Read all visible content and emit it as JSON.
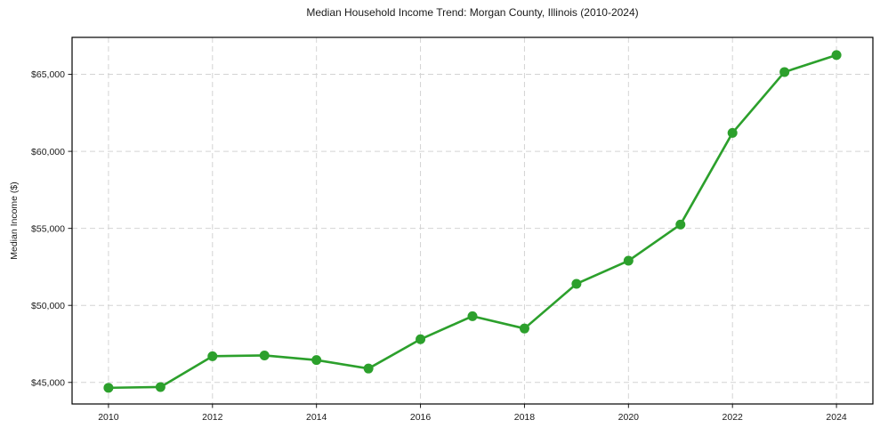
{
  "chart_data": {
    "type": "line",
    "title": "Median Household Income Trend: Morgan County, Illinois (2010-2024)",
    "xlabel": "",
    "ylabel": "Median Income ($)",
    "x": [
      2010,
      2011,
      2012,
      2013,
      2014,
      2015,
      2016,
      2017,
      2018,
      2019,
      2020,
      2021,
      2022,
      2023,
      2024
    ],
    "series": [
      {
        "name": "Median Household Income",
        "values": [
          44650,
          44700,
          46700,
          46750,
          46450,
          45900,
          47800,
          49300,
          48500,
          51400,
          52900,
          55250,
          61200,
          65150,
          66250
        ]
      }
    ],
    "xticks": [
      2010,
      2012,
      2014,
      2016,
      2018,
      2020,
      2022,
      2024
    ],
    "yticks": [
      45000,
      50000,
      55000,
      60000,
      65000
    ],
    "ytick_format": "$#,###",
    "xlim": [
      2009.3,
      2024.7
    ],
    "ylim": [
      43600,
      67400
    ],
    "grid": true,
    "grid_style": "dashed",
    "legend": "none",
    "line_color": "#2ca02c",
    "marker": "circle",
    "marker_radius": 5.5
  }
}
